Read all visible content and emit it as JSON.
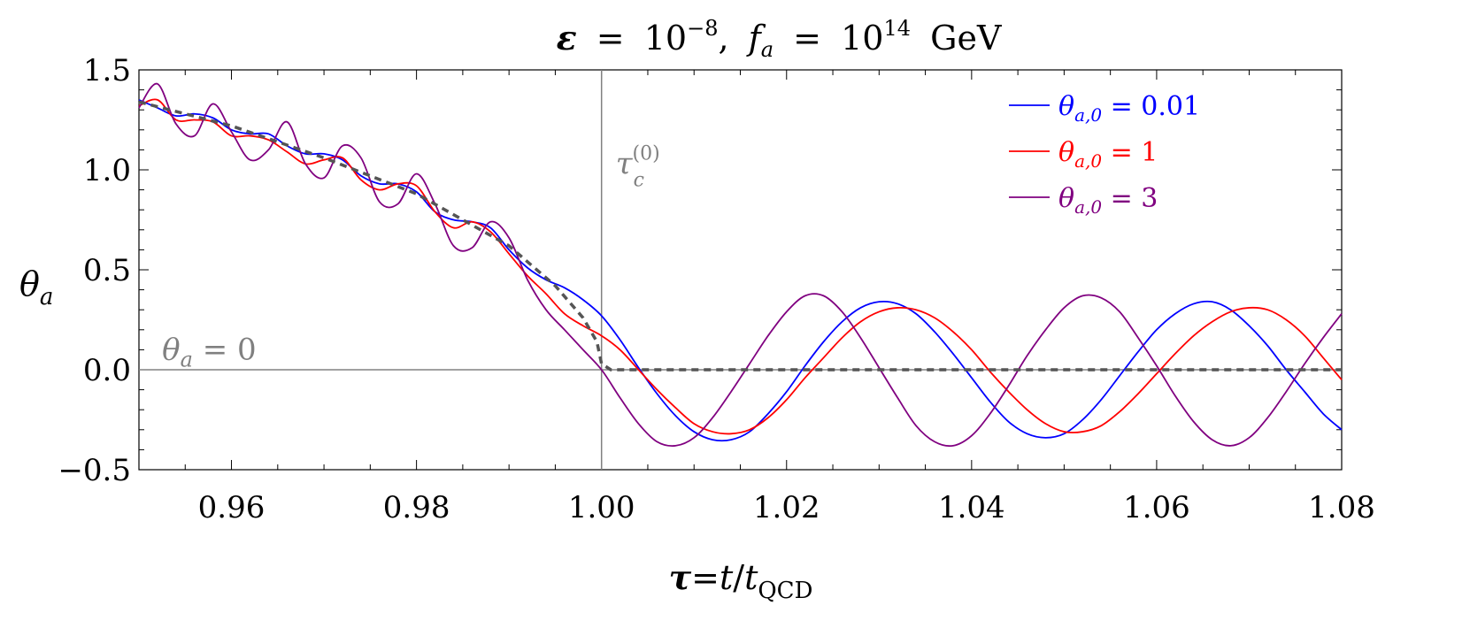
{
  "chart_data": {
    "type": "line",
    "title": {
      "epsilon_symbol": "ε",
      "equals": "=",
      "epsilon_base": "10",
      "epsilon_exp": "−8",
      "separator": ",",
      "fa_symbol": "f",
      "fa_sub": "a",
      "fa_base": "10",
      "fa_exp": "14",
      "unit": "GeV"
    },
    "xlabel": {
      "tau": "τ",
      "equals": "=",
      "t": "t",
      "slash": "/",
      "t2": "t",
      "sub": "QCD"
    },
    "ylabel": {
      "theta": "θ",
      "sub": "a"
    },
    "xlim": [
      0.95,
      1.08
    ],
    "ylim": [
      -0.5,
      1.5
    ],
    "x_ticks": [
      0.96,
      0.98,
      1.0,
      1.02,
      1.04,
      1.06,
      1.08
    ],
    "x_tick_labels": [
      "0.96",
      "0.98",
      "1.00",
      "1.02",
      "1.04",
      "1.06",
      "1.08"
    ],
    "y_ticks": [
      -0.5,
      0.0,
      0.5,
      1.0,
      1.5
    ],
    "y_tick_labels": [
      "−0.5",
      "0.0",
      "0.5",
      "1.0",
      "1.5"
    ],
    "legend_position": "top-right",
    "series": [
      {
        "name": "θa,0 = 0.01",
        "legend": {
          "sym": "θ",
          "sub": "a,0",
          "rest": " = 0.01"
        },
        "color": "#0000ff",
        "x": [
          0.95,
          0.952,
          0.954,
          0.956,
          0.958,
          0.96,
          0.962,
          0.964,
          0.966,
          0.968,
          0.97,
          0.972,
          0.974,
          0.976,
          0.978,
          0.98,
          0.982,
          0.984,
          0.986,
          0.988,
          0.99,
          0.992,
          0.994,
          0.996,
          0.998,
          1.0,
          1.002,
          1.004,
          1.006,
          1.008,
          1.01,
          1.012,
          1.014,
          1.016,
          1.018,
          1.02,
          1.022,
          1.024,
          1.026,
          1.028,
          1.03,
          1.032,
          1.034,
          1.036,
          1.038,
          1.04,
          1.042,
          1.044,
          1.046,
          1.048,
          1.05,
          1.052,
          1.054,
          1.056,
          1.058,
          1.06,
          1.062,
          1.064,
          1.066,
          1.068,
          1.07,
          1.072,
          1.074,
          1.076,
          1.078,
          1.08
        ],
        "y": [
          1.35,
          1.31,
          1.27,
          1.28,
          1.26,
          1.2,
          1.18,
          1.18,
          1.12,
          1.08,
          1.08,
          1.05,
          0.97,
          0.93,
          0.93,
          0.89,
          0.79,
          0.75,
          0.74,
          0.71,
          0.6,
          0.51,
          0.45,
          0.41,
          0.35,
          0.27,
          0.15,
          0.01,
          -0.12,
          -0.23,
          -0.31,
          -0.35,
          -0.35,
          -0.31,
          -0.22,
          -0.11,
          0.02,
          0.14,
          0.24,
          0.31,
          0.34,
          0.33,
          0.28,
          0.19,
          0.08,
          -0.04,
          -0.16,
          -0.26,
          -0.32,
          -0.34,
          -0.32,
          -0.25,
          -0.15,
          -0.03,
          0.09,
          0.2,
          0.28,
          0.33,
          0.34,
          0.3,
          0.22,
          0.12,
          0.0,
          -0.11,
          -0.22,
          -0.3
        ]
      },
      {
        "name": "θa,0 = 1",
        "legend": {
          "sym": "θ",
          "sub": "a,0",
          "rest": " = 1"
        },
        "color": "#ff0000",
        "x": [
          0.95,
          0.952,
          0.954,
          0.956,
          0.958,
          0.96,
          0.962,
          0.964,
          0.966,
          0.968,
          0.97,
          0.972,
          0.974,
          0.976,
          0.978,
          0.98,
          0.982,
          0.984,
          0.986,
          0.988,
          0.99,
          0.992,
          0.994,
          0.996,
          0.998,
          1.0,
          1.002,
          1.004,
          1.006,
          1.008,
          1.01,
          1.012,
          1.014,
          1.016,
          1.018,
          1.02,
          1.022,
          1.024,
          1.026,
          1.028,
          1.03,
          1.032,
          1.034,
          1.036,
          1.038,
          1.04,
          1.042,
          1.044,
          1.046,
          1.048,
          1.05,
          1.052,
          1.054,
          1.056,
          1.058,
          1.06,
          1.062,
          1.064,
          1.066,
          1.068,
          1.07,
          1.072,
          1.074,
          1.076,
          1.078,
          1.08
        ],
        "y": [
          1.32,
          1.35,
          1.25,
          1.25,
          1.24,
          1.17,
          1.17,
          1.15,
          1.09,
          1.03,
          1.05,
          1.06,
          0.95,
          0.9,
          0.93,
          0.92,
          0.79,
          0.71,
          0.74,
          0.69,
          0.58,
          0.47,
          0.38,
          0.28,
          0.22,
          0.17,
          0.1,
          0.0,
          -0.1,
          -0.19,
          -0.27,
          -0.31,
          -0.32,
          -0.3,
          -0.24,
          -0.15,
          -0.04,
          0.06,
          0.16,
          0.24,
          0.29,
          0.31,
          0.3,
          0.26,
          0.19,
          0.1,
          -0.01,
          -0.11,
          -0.2,
          -0.27,
          -0.31,
          -0.31,
          -0.28,
          -0.21,
          -0.12,
          -0.02,
          0.08,
          0.17,
          0.24,
          0.29,
          0.31,
          0.3,
          0.25,
          0.17,
          0.06,
          -0.05
        ]
      },
      {
        "name": "θa,0 = 3",
        "legend": {
          "sym": "θ",
          "sub": "a,0",
          "rest": " = 3"
        },
        "color": "#800080",
        "x": [
          0.95,
          0.952,
          0.954,
          0.956,
          0.958,
          0.96,
          0.962,
          0.964,
          0.966,
          0.968,
          0.97,
          0.972,
          0.974,
          0.976,
          0.978,
          0.98,
          0.982,
          0.984,
          0.986,
          0.988,
          0.99,
          0.992,
          0.994,
          0.996,
          0.998,
          1.0,
          1.002,
          1.004,
          1.006,
          1.008,
          1.01,
          1.012,
          1.014,
          1.016,
          1.018,
          1.02,
          1.022,
          1.024,
          1.026,
          1.028,
          1.03,
          1.032,
          1.034,
          1.036,
          1.038,
          1.04,
          1.042,
          1.044,
          1.046,
          1.048,
          1.05,
          1.052,
          1.054,
          1.056,
          1.058,
          1.06,
          1.062,
          1.064,
          1.066,
          1.068,
          1.07,
          1.072,
          1.074,
          1.076,
          1.078,
          1.08
        ],
        "y": [
          1.31,
          1.43,
          1.23,
          1.17,
          1.33,
          1.19,
          1.05,
          1.1,
          1.24,
          1.03,
          0.96,
          1.12,
          1.06,
          0.84,
          0.83,
          0.98,
          0.83,
          0.62,
          0.61,
          0.74,
          0.66,
          0.45,
          0.3,
          0.2,
          0.1,
          0.0,
          -0.14,
          -0.27,
          -0.36,
          -0.38,
          -0.34,
          -0.24,
          -0.11,
          0.03,
          0.17,
          0.29,
          0.37,
          0.37,
          0.29,
          0.16,
          0.01,
          -0.14,
          -0.28,
          -0.36,
          -0.38,
          -0.33,
          -0.22,
          -0.08,
          0.07,
          0.2,
          0.31,
          0.37,
          0.36,
          0.29,
          0.16,
          0.02,
          -0.13,
          -0.26,
          -0.35,
          -0.38,
          -0.34,
          -0.24,
          -0.11,
          0.03,
          0.16,
          0.28
        ]
      },
      {
        "name": "dashed reference",
        "color": "#555555",
        "dashed": true,
        "x": [
          0.95,
          0.96,
          0.97,
          0.98,
          0.99,
          0.995,
          0.998,
          0.9995,
          1.0,
          1.001,
          1.01,
          1.04,
          1.06,
          1.08
        ],
        "y": [
          1.34,
          1.22,
          1.06,
          0.88,
          0.62,
          0.42,
          0.26,
          0.14,
          0.03,
          0.0,
          0.0,
          0.0,
          0.0,
          0.0
        ]
      }
    ],
    "annotations": {
      "vline": {
        "x": 1.0,
        "label": {
          "sym": "τ",
          "sub": "c",
          "sup": "(0)"
        }
      },
      "hline": {
        "y": 0.0,
        "label": {
          "sym": "θ",
          "sub": "a",
          "rest": " = 0"
        }
      }
    }
  }
}
